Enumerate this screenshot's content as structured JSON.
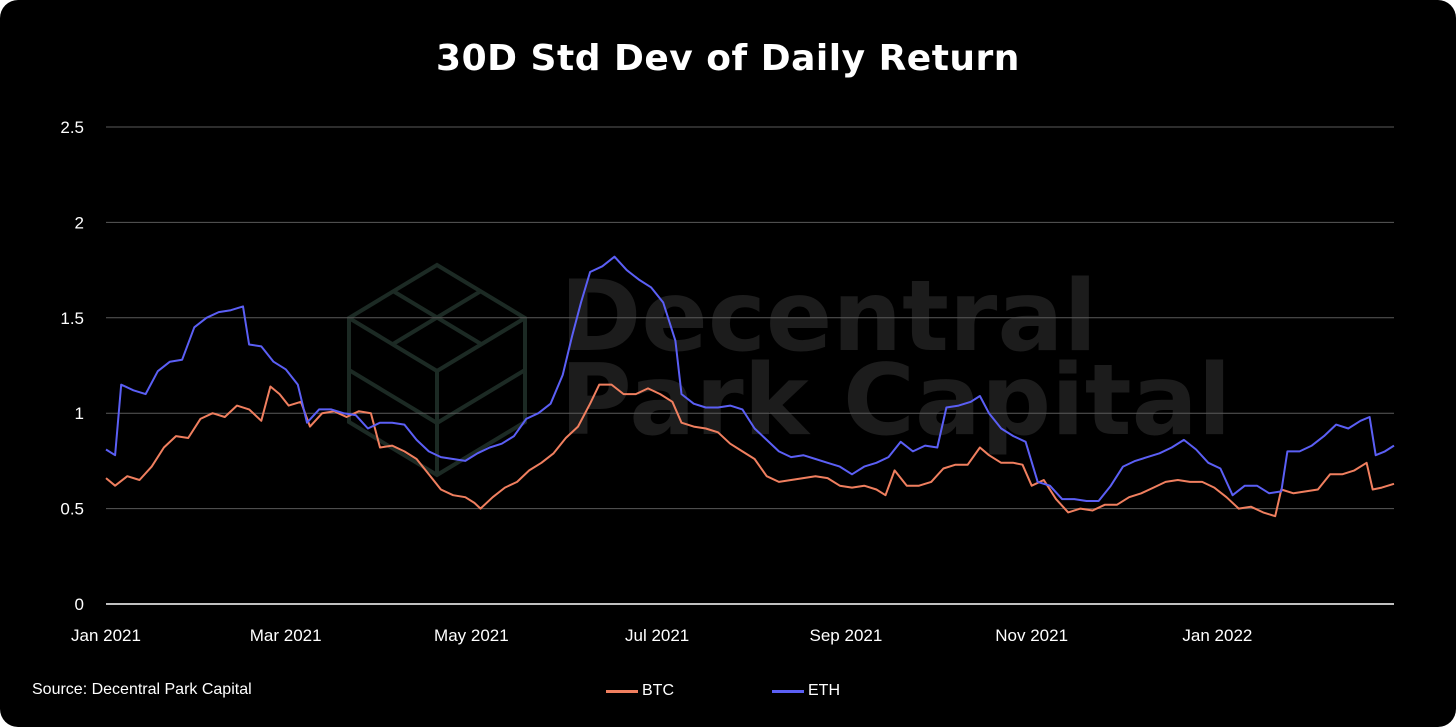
{
  "chart_data": {
    "type": "line",
    "title": "30D Std Dev of Daily Return",
    "xlabel": "",
    "ylabel": "",
    "x_ticks": [
      "Jan 2021",
      "Mar 2021",
      "May 2021",
      "Jul 2021",
      "Sep 2021",
      "Nov 2021",
      "Jan 2022"
    ],
    "y_ticks": [
      "0",
      "0.5",
      "1",
      "1.5",
      "2",
      "2.5"
    ],
    "ylim": [
      0,
      2.5
    ],
    "xlim": [
      "2021-01-01",
      "2022-02-28"
    ],
    "grid": true,
    "legend_position": "bottom-center",
    "series": [
      {
        "name": "BTC",
        "color": "#f07f5f",
        "points": [
          [
            "2021-01-01",
            0.66
          ],
          [
            "2021-01-04",
            0.62
          ],
          [
            "2021-01-08",
            0.67
          ],
          [
            "2021-01-12",
            0.65
          ],
          [
            "2021-01-16",
            0.72
          ],
          [
            "2021-01-20",
            0.82
          ],
          [
            "2021-01-24",
            0.88
          ],
          [
            "2021-01-28",
            0.87
          ],
          [
            "2021-02-01",
            0.97
          ],
          [
            "2021-02-05",
            1.0
          ],
          [
            "2021-02-09",
            0.98
          ],
          [
            "2021-02-13",
            1.04
          ],
          [
            "2021-02-17",
            1.02
          ],
          [
            "2021-02-21",
            0.96
          ],
          [
            "2021-02-24",
            1.14
          ],
          [
            "2021-02-27",
            1.1
          ],
          [
            "2021-03-02",
            1.04
          ],
          [
            "2021-03-06",
            1.06
          ],
          [
            "2021-03-09",
            0.93
          ],
          [
            "2021-03-13",
            1.0
          ],
          [
            "2021-03-17",
            1.01
          ],
          [
            "2021-03-21",
            0.98
          ],
          [
            "2021-03-25",
            1.01
          ],
          [
            "2021-03-29",
            1.0
          ],
          [
            "2021-04-01",
            0.82
          ],
          [
            "2021-04-05",
            0.83
          ],
          [
            "2021-04-09",
            0.8
          ],
          [
            "2021-04-13",
            0.76
          ],
          [
            "2021-04-17",
            0.68
          ],
          [
            "2021-04-21",
            0.6
          ],
          [
            "2021-04-25",
            0.57
          ],
          [
            "2021-04-29",
            0.56
          ],
          [
            "2021-05-02",
            0.53
          ],
          [
            "2021-05-04",
            0.5
          ],
          [
            "2021-05-08",
            0.56
          ],
          [
            "2021-05-12",
            0.61
          ],
          [
            "2021-05-16",
            0.64
          ],
          [
            "2021-05-20",
            0.7
          ],
          [
            "2021-05-24",
            0.74
          ],
          [
            "2021-05-28",
            0.79
          ],
          [
            "2021-06-01",
            0.87
          ],
          [
            "2021-06-05",
            0.93
          ],
          [
            "2021-06-09",
            1.05
          ],
          [
            "2021-06-12",
            1.15
          ],
          [
            "2021-06-16",
            1.15
          ],
          [
            "2021-06-20",
            1.1
          ],
          [
            "2021-06-24",
            1.1
          ],
          [
            "2021-06-28",
            1.13
          ],
          [
            "2021-07-02",
            1.1
          ],
          [
            "2021-07-06",
            1.06
          ],
          [
            "2021-07-09",
            0.95
          ],
          [
            "2021-07-13",
            0.93
          ],
          [
            "2021-07-17",
            0.92
          ],
          [
            "2021-07-21",
            0.9
          ],
          [
            "2021-07-25",
            0.84
          ],
          [
            "2021-07-29",
            0.8
          ],
          [
            "2021-08-02",
            0.76
          ],
          [
            "2021-08-06",
            0.67
          ],
          [
            "2021-08-10",
            0.64
          ],
          [
            "2021-08-14",
            0.65
          ],
          [
            "2021-08-18",
            0.66
          ],
          [
            "2021-08-22",
            0.67
          ],
          [
            "2021-08-26",
            0.66
          ],
          [
            "2021-08-30",
            0.62
          ],
          [
            "2021-09-03",
            0.61
          ],
          [
            "2021-09-07",
            0.62
          ],
          [
            "2021-09-11",
            0.6
          ],
          [
            "2021-09-14",
            0.57
          ],
          [
            "2021-09-17",
            0.7
          ],
          [
            "2021-09-21",
            0.62
          ],
          [
            "2021-09-25",
            0.62
          ],
          [
            "2021-09-29",
            0.64
          ],
          [
            "2021-10-03",
            0.71
          ],
          [
            "2021-10-07",
            0.73
          ],
          [
            "2021-10-11",
            0.73
          ],
          [
            "2021-10-15",
            0.82
          ],
          [
            "2021-10-18",
            0.78
          ],
          [
            "2021-10-22",
            0.74
          ],
          [
            "2021-10-26",
            0.74
          ],
          [
            "2021-10-29",
            0.73
          ],
          [
            "2021-11-01",
            0.62
          ],
          [
            "2021-11-05",
            0.65
          ],
          [
            "2021-11-09",
            0.55
          ],
          [
            "2021-11-13",
            0.48
          ],
          [
            "2021-11-17",
            0.5
          ],
          [
            "2021-11-21",
            0.49
          ],
          [
            "2021-11-25",
            0.52
          ],
          [
            "2021-11-29",
            0.52
          ],
          [
            "2021-12-03",
            0.56
          ],
          [
            "2021-12-07",
            0.58
          ],
          [
            "2021-12-11",
            0.61
          ],
          [
            "2021-12-15",
            0.64
          ],
          [
            "2021-12-19",
            0.65
          ],
          [
            "2021-12-23",
            0.64
          ],
          [
            "2021-12-27",
            0.64
          ],
          [
            "2021-12-31",
            0.61
          ],
          [
            "2022-01-04",
            0.56
          ],
          [
            "2022-01-08",
            0.5
          ],
          [
            "2022-01-12",
            0.51
          ],
          [
            "2022-01-16",
            0.48
          ],
          [
            "2022-01-20",
            0.46
          ],
          [
            "2022-01-22",
            0.6
          ],
          [
            "2022-01-26",
            0.58
          ],
          [
            "2022-01-30",
            0.59
          ],
          [
            "2022-02-03",
            0.6
          ],
          [
            "2022-02-07",
            0.68
          ],
          [
            "2022-02-11",
            0.68
          ],
          [
            "2022-02-15",
            0.7
          ],
          [
            "2022-02-19",
            0.74
          ],
          [
            "2022-02-21",
            0.6
          ],
          [
            "2022-02-24",
            0.61
          ],
          [
            "2022-02-28",
            0.63
          ]
        ]
      },
      {
        "name": "ETH",
        "color": "#5b5ff5",
        "points": [
          [
            "2021-01-01",
            0.81
          ],
          [
            "2021-01-04",
            0.78
          ],
          [
            "2021-01-06",
            1.15
          ],
          [
            "2021-01-10",
            1.12
          ],
          [
            "2021-01-14",
            1.1
          ],
          [
            "2021-01-18",
            1.22
          ],
          [
            "2021-01-22",
            1.27
          ],
          [
            "2021-01-26",
            1.28
          ],
          [
            "2021-01-30",
            1.45
          ],
          [
            "2021-02-03",
            1.5
          ],
          [
            "2021-02-07",
            1.53
          ],
          [
            "2021-02-11",
            1.54
          ],
          [
            "2021-02-15",
            1.56
          ],
          [
            "2021-02-17",
            1.36
          ],
          [
            "2021-02-21",
            1.35
          ],
          [
            "2021-02-25",
            1.27
          ],
          [
            "2021-03-01",
            1.23
          ],
          [
            "2021-03-05",
            1.15
          ],
          [
            "2021-03-08",
            0.95
          ],
          [
            "2021-03-12",
            1.02
          ],
          [
            "2021-03-16",
            1.02
          ],
          [
            "2021-03-20",
            1.0
          ],
          [
            "2021-03-24",
            0.99
          ],
          [
            "2021-03-28",
            0.92
          ],
          [
            "2021-04-01",
            0.95
          ],
          [
            "2021-04-05",
            0.95
          ],
          [
            "2021-04-09",
            0.94
          ],
          [
            "2021-04-13",
            0.86
          ],
          [
            "2021-04-17",
            0.8
          ],
          [
            "2021-04-21",
            0.77
          ],
          [
            "2021-04-25",
            0.76
          ],
          [
            "2021-04-29",
            0.75
          ],
          [
            "2021-05-03",
            0.79
          ],
          [
            "2021-05-07",
            0.82
          ],
          [
            "2021-05-11",
            0.84
          ],
          [
            "2021-05-15",
            0.88
          ],
          [
            "2021-05-19",
            0.97
          ],
          [
            "2021-05-23",
            1.0
          ],
          [
            "2021-05-27",
            1.05
          ],
          [
            "2021-05-31",
            1.2
          ],
          [
            "2021-06-03",
            1.4
          ],
          [
            "2021-06-06",
            1.58
          ],
          [
            "2021-06-09",
            1.74
          ],
          [
            "2021-06-13",
            1.77
          ],
          [
            "2021-06-17",
            1.82
          ],
          [
            "2021-06-21",
            1.75
          ],
          [
            "2021-06-25",
            1.7
          ],
          [
            "2021-06-29",
            1.66
          ],
          [
            "2021-07-03",
            1.58
          ],
          [
            "2021-07-07",
            1.38
          ],
          [
            "2021-07-09",
            1.1
          ],
          [
            "2021-07-13",
            1.05
          ],
          [
            "2021-07-17",
            1.03
          ],
          [
            "2021-07-21",
            1.03
          ],
          [
            "2021-07-25",
            1.04
          ],
          [
            "2021-07-29",
            1.02
          ],
          [
            "2021-08-02",
            0.92
          ],
          [
            "2021-08-06",
            0.86
          ],
          [
            "2021-08-10",
            0.8
          ],
          [
            "2021-08-14",
            0.77
          ],
          [
            "2021-08-18",
            0.78
          ],
          [
            "2021-08-22",
            0.76
          ],
          [
            "2021-08-26",
            0.74
          ],
          [
            "2021-08-30",
            0.72
          ],
          [
            "2021-09-03",
            0.68
          ],
          [
            "2021-09-07",
            0.72
          ],
          [
            "2021-09-11",
            0.74
          ],
          [
            "2021-09-15",
            0.77
          ],
          [
            "2021-09-19",
            0.85
          ],
          [
            "2021-09-23",
            0.8
          ],
          [
            "2021-09-27",
            0.83
          ],
          [
            "2021-10-01",
            0.82
          ],
          [
            "2021-10-04",
            1.03
          ],
          [
            "2021-10-08",
            1.04
          ],
          [
            "2021-10-12",
            1.06
          ],
          [
            "2021-10-15",
            1.09
          ],
          [
            "2021-10-18",
            1.0
          ],
          [
            "2021-10-22",
            0.92
          ],
          [
            "2021-10-26",
            0.88
          ],
          [
            "2021-10-30",
            0.85
          ],
          [
            "2021-11-03",
            0.64
          ],
          [
            "2021-11-07",
            0.62
          ],
          [
            "2021-11-11",
            0.55
          ],
          [
            "2021-11-15",
            0.55
          ],
          [
            "2021-11-19",
            0.54
          ],
          [
            "2021-11-23",
            0.54
          ],
          [
            "2021-11-27",
            0.62
          ],
          [
            "2021-12-01",
            0.72
          ],
          [
            "2021-12-05",
            0.75
          ],
          [
            "2021-12-09",
            0.77
          ],
          [
            "2021-12-13",
            0.79
          ],
          [
            "2021-12-17",
            0.82
          ],
          [
            "2021-12-21",
            0.86
          ],
          [
            "2021-12-25",
            0.81
          ],
          [
            "2021-12-29",
            0.74
          ],
          [
            "2022-01-02",
            0.71
          ],
          [
            "2022-01-06",
            0.57
          ],
          [
            "2022-01-10",
            0.62
          ],
          [
            "2022-01-14",
            0.62
          ],
          [
            "2022-01-18",
            0.58
          ],
          [
            "2022-01-22",
            0.59
          ],
          [
            "2022-01-24",
            0.8
          ],
          [
            "2022-01-28",
            0.8
          ],
          [
            "2022-02-01",
            0.83
          ],
          [
            "2022-02-05",
            0.88
          ],
          [
            "2022-02-09",
            0.94
          ],
          [
            "2022-02-13",
            0.92
          ],
          [
            "2022-02-17",
            0.96
          ],
          [
            "2022-02-20",
            0.98
          ],
          [
            "2022-02-22",
            0.78
          ],
          [
            "2022-02-25",
            0.8
          ],
          [
            "2022-02-28",
            0.83
          ]
        ]
      }
    ]
  },
  "footer": {
    "source": "Source: Decentral Park Capital"
  },
  "watermark": {
    "line1": "Decentral",
    "line2": "Park Capital"
  },
  "colors": {
    "background": "#000000",
    "grid": "#5a5a5a",
    "text": "#ffffff"
  }
}
